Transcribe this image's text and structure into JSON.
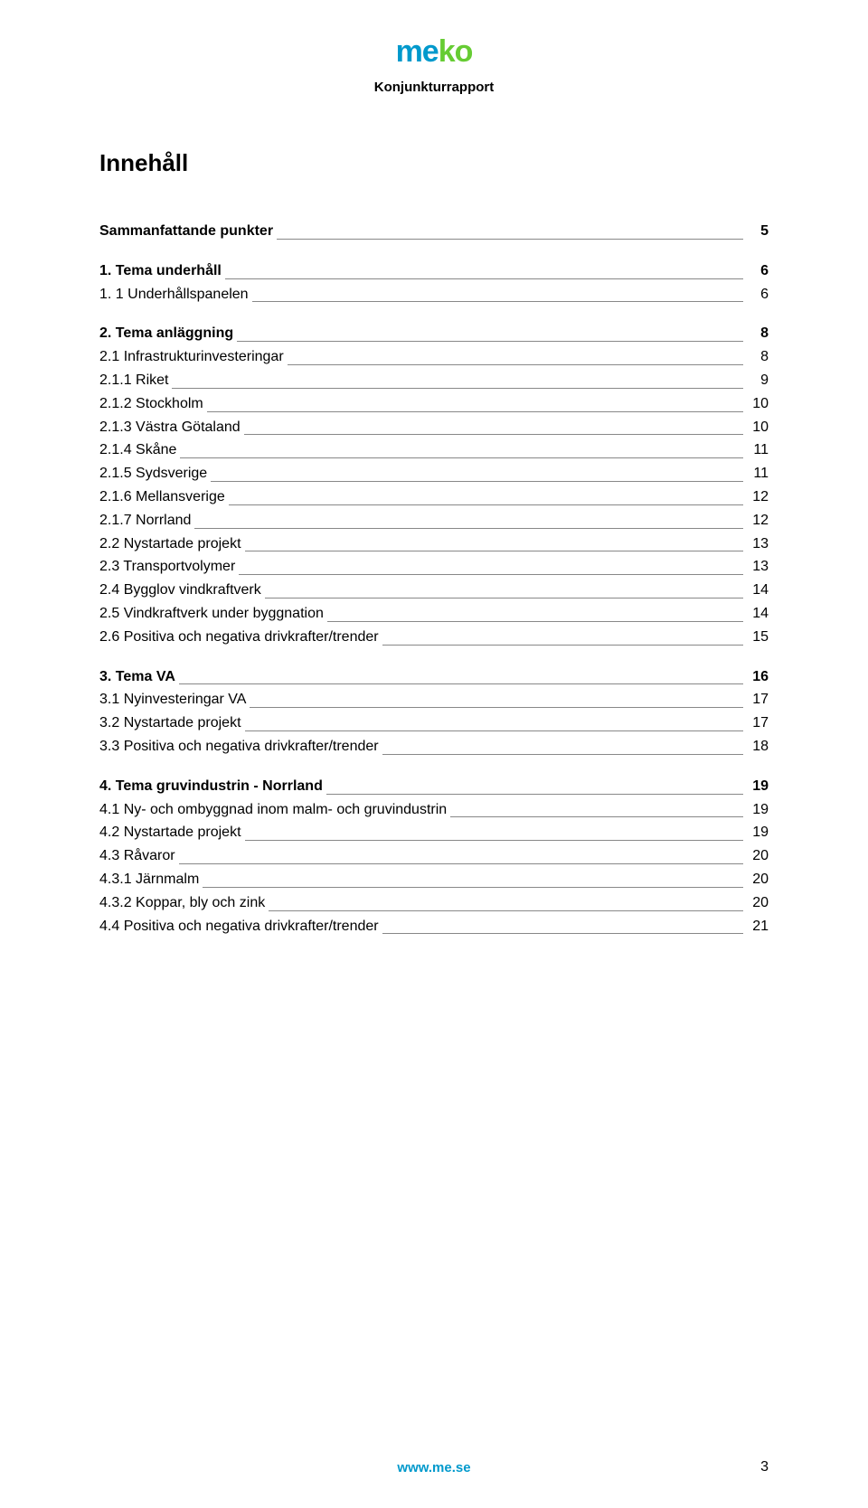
{
  "header": {
    "logo_chars": [
      "m",
      "e",
      "k",
      "o"
    ],
    "subtitle": "Konjunkturrapport"
  },
  "title": "Innehåll",
  "toc": [
    {
      "label": "Sammanfattande punkter",
      "page": "5",
      "bold": true
    },
    {
      "gap": true
    },
    {
      "label": "1. Tema underhåll",
      "page": "6",
      "bold": true
    },
    {
      "label": "1. 1 Underhållspanelen",
      "page": "6",
      "bold": false
    },
    {
      "gap": true
    },
    {
      "label": "2. Tema anläggning",
      "page": "8",
      "bold": true
    },
    {
      "label": "2.1 Infrastrukturinvesteringar",
      "page": "8",
      "bold": false
    },
    {
      "label": "2.1.1 Riket",
      "page": "9",
      "bold": false
    },
    {
      "label": "2.1.2 Stockholm",
      "page": "10",
      "bold": false
    },
    {
      "label": "2.1.3 Västra Götaland",
      "page": "10",
      "bold": false
    },
    {
      "label": "2.1.4 Skåne",
      "page": "11",
      "bold": false
    },
    {
      "label": "2.1.5 Sydsverige",
      "page": "11",
      "bold": false
    },
    {
      "label": "2.1.6 Mellansverige",
      "page": "12",
      "bold": false
    },
    {
      "label": "2.1.7 Norrland",
      "page": "12",
      "bold": false
    },
    {
      "label": "2.2 Nystartade projekt",
      "page": "13",
      "bold": false
    },
    {
      "label": "2.3 Transportvolymer",
      "page": "13",
      "bold": false
    },
    {
      "label": "2.4 Bygglov vindkraftverk",
      "page": "14",
      "bold": false
    },
    {
      "label": "2.5 Vindkraftverk under byggnation",
      "page": "14",
      "bold": false
    },
    {
      "label": "2.6 Positiva och negativa drivkrafter/trender",
      "page": "15",
      "bold": false
    },
    {
      "gap": true
    },
    {
      "label": "3. Tema VA",
      "page": "16",
      "bold": true
    },
    {
      "label": "3.1 Nyinvesteringar VA",
      "page": "17",
      "bold": false
    },
    {
      "label": "3.2 Nystartade projekt",
      "page": "17",
      "bold": false
    },
    {
      "label": "3.3 Positiva och negativa drivkrafter/trender",
      "page": "18",
      "bold": false
    },
    {
      "gap": true
    },
    {
      "label": "4. Tema gruvindustrin - Norrland",
      "page": "19",
      "bold": true
    },
    {
      "label": "4.1 Ny- och ombyggnad inom malm- och gruvindustrin",
      "page": "19",
      "bold": false
    },
    {
      "label": "4.2 Nystartade projekt",
      "page": "19",
      "bold": false
    },
    {
      "label": "4.3 Råvaror",
      "page": "20",
      "bold": false
    },
    {
      "label": "4.3.1 Järnmalm",
      "page": "20",
      "bold": false
    },
    {
      "label": "4.3.2 Koppar, bly och zink",
      "page": "20",
      "bold": false
    },
    {
      "label": "4.4 Positiva och negativa drivkrafter/trender",
      "page": "21",
      "bold": false
    }
  ],
  "footer": {
    "url": "www.me.se",
    "page_number": "3"
  },
  "colors": {
    "logo_blue": "#0099cc",
    "logo_green": "#66cc33",
    "text": "#000000",
    "leader": "#888888",
    "background": "#ffffff"
  }
}
